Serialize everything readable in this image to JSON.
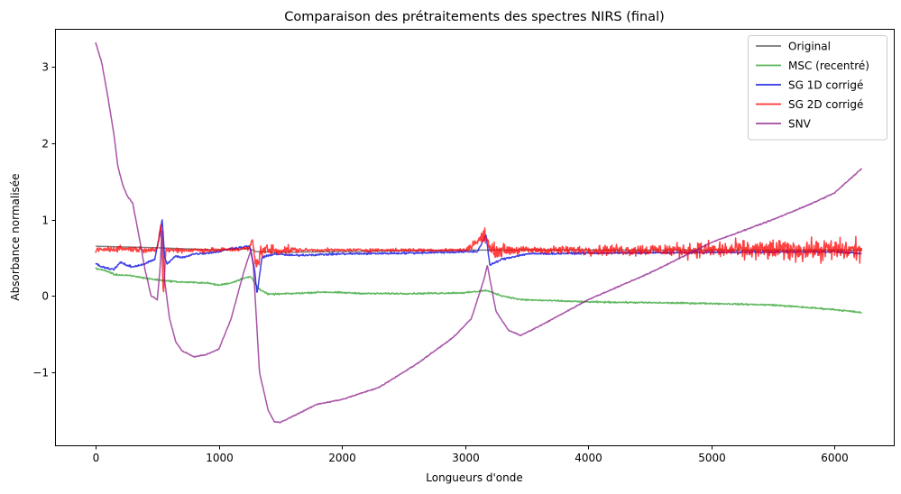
{
  "chart_data": {
    "type": "line",
    "title": "Comparaison des prétraitements des spectres NIRS (final)",
    "xlabel": "Longueurs d'onde",
    "ylabel": "Absorbance normalisée",
    "xlim": [
      -330,
      6480
    ],
    "ylim": [
      -1.96,
      3.5
    ],
    "x_ticks": [
      0,
      1000,
      2000,
      3000,
      4000,
      5000,
      6000
    ],
    "y_ticks": [
      -1,
      0,
      1,
      2,
      3
    ],
    "y_tick_labels": [
      "−1",
      "0",
      "1",
      "2",
      "3"
    ],
    "grid": false,
    "legend_position": "top-right",
    "series": [
      {
        "name": "Original",
        "color": "#555555",
        "points": [
          [
            0,
            0.65
          ],
          [
            500,
            0.63
          ],
          [
            1000,
            0.6
          ],
          [
            1250,
            0.62
          ],
          [
            1300,
            0.58
          ],
          [
            1500,
            0.57
          ],
          [
            2000,
            0.58
          ],
          [
            3000,
            0.6
          ],
          [
            3200,
            0.6
          ],
          [
            4000,
            0.6
          ],
          [
            5000,
            0.6
          ],
          [
            6220,
            0.6
          ]
        ]
      },
      {
        "name": "MSC (recentré)",
        "color": "#2ca02c",
        "noise": 0.015,
        "points": [
          [
            0,
            0.36
          ],
          [
            100,
            0.32
          ],
          [
            150,
            0.28
          ],
          [
            300,
            0.26
          ],
          [
            450,
            0.22
          ],
          [
            550,
            0.2
          ],
          [
            700,
            0.18
          ],
          [
            900,
            0.17
          ],
          [
            1000,
            0.14
          ],
          [
            1100,
            0.17
          ],
          [
            1200,
            0.23
          ],
          [
            1260,
            0.25
          ],
          [
            1320,
            0.1
          ],
          [
            1400,
            0.02
          ],
          [
            1600,
            0.03
          ],
          [
            1850,
            0.05
          ],
          [
            2200,
            0.03
          ],
          [
            2600,
            0.03
          ],
          [
            3000,
            0.04
          ],
          [
            3170,
            0.07
          ],
          [
            3300,
            0.0
          ],
          [
            3450,
            -0.05
          ],
          [
            4000,
            -0.08
          ],
          [
            4500,
            -0.09
          ],
          [
            5000,
            -0.1
          ],
          [
            5500,
            -0.12
          ],
          [
            6000,
            -0.18
          ],
          [
            6220,
            -0.22
          ]
        ]
      },
      {
        "name": "SG 1D corrigé",
        "color": "#0000dd",
        "noise": 0.02,
        "points": [
          [
            0,
            0.42
          ],
          [
            50,
            0.38
          ],
          [
            100,
            0.36
          ],
          [
            150,
            0.35
          ],
          [
            200,
            0.44
          ],
          [
            250,
            0.4
          ],
          [
            300,
            0.38
          ],
          [
            400,
            0.42
          ],
          [
            480,
            0.48
          ],
          [
            520,
            0.8
          ],
          [
            540,
            1.0
          ],
          [
            560,
            0.5
          ],
          [
            580,
            0.42
          ],
          [
            650,
            0.52
          ],
          [
            700,
            0.5
          ],
          [
            800,
            0.55
          ],
          [
            900,
            0.56
          ],
          [
            1000,
            0.58
          ],
          [
            1100,
            0.62
          ],
          [
            1250,
            0.65
          ],
          [
            1290,
            0.35
          ],
          [
            1310,
            0.02
          ],
          [
            1350,
            0.5
          ],
          [
            1450,
            0.55
          ],
          [
            1600,
            0.53
          ],
          [
            2000,
            0.55
          ],
          [
            2500,
            0.56
          ],
          [
            3100,
            0.58
          ],
          [
            3170,
            0.8
          ],
          [
            3200,
            0.4
          ],
          [
            3300,
            0.48
          ],
          [
            3500,
            0.55
          ],
          [
            4000,
            0.56
          ],
          [
            5000,
            0.57
          ],
          [
            6000,
            0.58
          ],
          [
            6220,
            0.55
          ]
        ]
      },
      {
        "name": "SG 2D corrigé",
        "color": "#ff0000",
        "noise_profile": [
          [
            0,
            0.06
          ],
          [
            1250,
            0.04
          ],
          [
            1300,
            0.15
          ],
          [
            1550,
            0.08
          ],
          [
            1700,
            0.03
          ],
          [
            3000,
            0.03
          ],
          [
            3170,
            0.15
          ],
          [
            3500,
            0.06
          ],
          [
            4500,
            0.12
          ],
          [
            5500,
            0.2
          ],
          [
            6220,
            0.22
          ]
        ],
        "points": [
          [
            0,
            0.6
          ],
          [
            200,
            0.62
          ],
          [
            500,
            0.6
          ],
          [
            530,
            0.95
          ],
          [
            550,
            0.0
          ],
          [
            570,
            0.6
          ],
          [
            1000,
            0.6
          ],
          [
            1250,
            0.62
          ],
          [
            1270,
            0.75
          ],
          [
            1300,
            0.4
          ],
          [
            1350,
            0.6
          ],
          [
            2000,
            0.6
          ],
          [
            3000,
            0.6
          ],
          [
            3170,
            0.8
          ],
          [
            3200,
            0.6
          ],
          [
            4000,
            0.6
          ],
          [
            5000,
            0.6
          ],
          [
            6000,
            0.6
          ],
          [
            6220,
            0.6
          ]
        ]
      },
      {
        "name": "SNV",
        "color": "#8b1a89",
        "noise": 0.01,
        "points": [
          [
            0,
            3.32
          ],
          [
            50,
            3.05
          ],
          [
            100,
            2.6
          ],
          [
            150,
            2.1
          ],
          [
            180,
            1.7
          ],
          [
            220,
            1.45
          ],
          [
            260,
            1.3
          ],
          [
            300,
            1.22
          ],
          [
            350,
            0.8
          ],
          [
            400,
            0.35
          ],
          [
            450,
            0.0
          ],
          [
            500,
            -0.05
          ],
          [
            520,
            0.3
          ],
          [
            540,
            0.85
          ],
          [
            560,
            0.2
          ],
          [
            600,
            -0.3
          ],
          [
            650,
            -0.6
          ],
          [
            700,
            -0.72
          ],
          [
            800,
            -0.8
          ],
          [
            900,
            -0.77
          ],
          [
            1000,
            -0.7
          ],
          [
            1100,
            -0.3
          ],
          [
            1200,
            0.3
          ],
          [
            1260,
            0.6
          ],
          [
            1280,
            0.4
          ],
          [
            1330,
            -1.0
          ],
          [
            1400,
            -1.5
          ],
          [
            1450,
            -1.65
          ],
          [
            1500,
            -1.66
          ],
          [
            1700,
            -1.5
          ],
          [
            1800,
            -1.42
          ],
          [
            2000,
            -1.36
          ],
          [
            2300,
            -1.2
          ],
          [
            2600,
            -0.9
          ],
          [
            2900,
            -0.55
          ],
          [
            3050,
            -0.3
          ],
          [
            3150,
            0.2
          ],
          [
            3180,
            0.4
          ],
          [
            3250,
            -0.2
          ],
          [
            3350,
            -0.45
          ],
          [
            3450,
            -0.52
          ],
          [
            3600,
            -0.4
          ],
          [
            4000,
            -0.05
          ],
          [
            4500,
            0.3
          ],
          [
            5000,
            0.7
          ],
          [
            5500,
            1.0
          ],
          [
            5800,
            1.2
          ],
          [
            6000,
            1.35
          ],
          [
            6220,
            1.67
          ]
        ]
      }
    ]
  }
}
